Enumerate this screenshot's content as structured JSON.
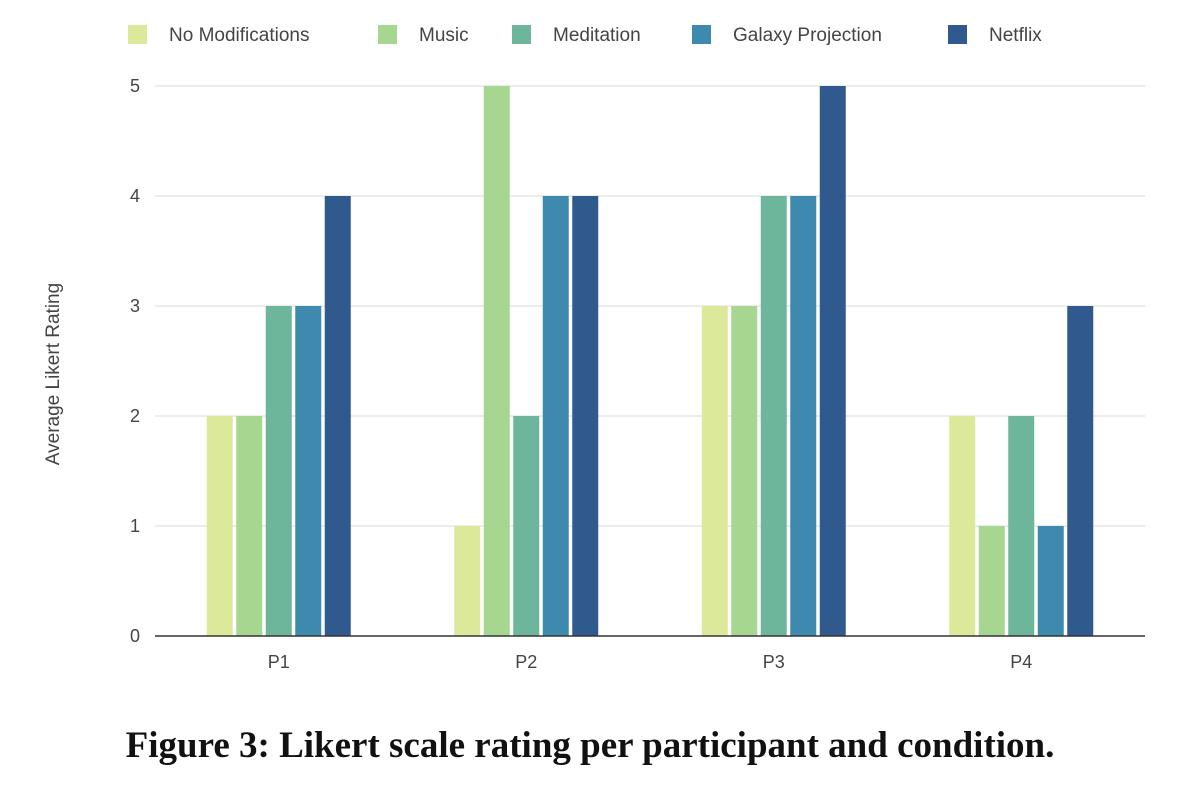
{
  "chart_data": {
    "type": "bar",
    "categories": [
      "P1",
      "P2",
      "P3",
      "P4"
    ],
    "series": [
      {
        "name": "No Modifications",
        "color": "#dde99a",
        "values": [
          2,
          1,
          3,
          2
        ]
      },
      {
        "name": "Music",
        "color": "#a6d68f",
        "values": [
          2,
          5,
          3,
          1
        ]
      },
      {
        "name": "Meditation",
        "color": "#6db59b",
        "values": [
          3,
          2,
          4,
          2
        ]
      },
      {
        "name": "Galaxy Projection",
        "color": "#3e8aae",
        "values": [
          3,
          4,
          4,
          1
        ]
      },
      {
        "name": "Netflix",
        "color": "#305a8e",
        "values": [
          4,
          4,
          5,
          3
        ]
      }
    ],
    "ylabel": "Average Likert Rating",
    "xlabel": "",
    "ylim": [
      0,
      5
    ],
    "yticks": [
      0,
      1,
      2,
      3,
      4,
      5
    ],
    "grid": true,
    "legend_position": "top"
  },
  "caption": "Figure 3: Likert scale rating per participant and condition."
}
